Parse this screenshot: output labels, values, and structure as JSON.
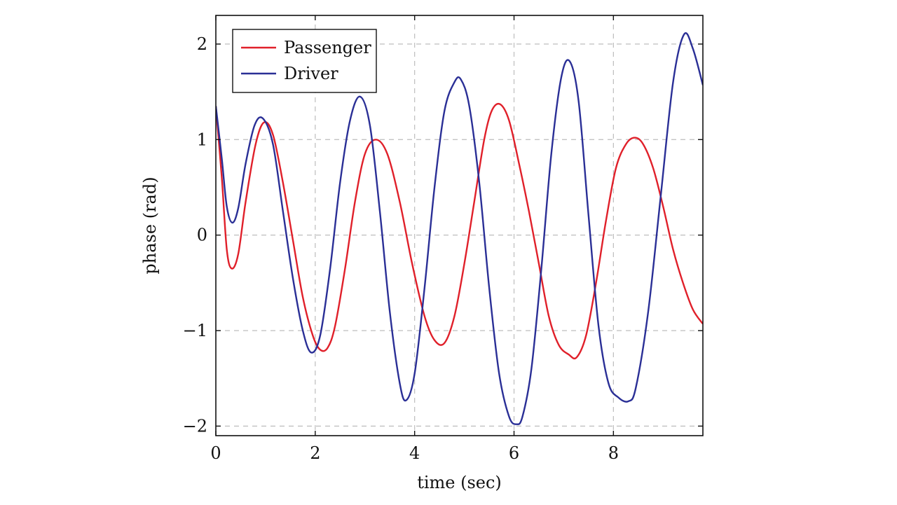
{
  "chart_data": {
    "type": "line",
    "xlabel": "time (sec)",
    "ylabel": "phase (rad)",
    "xlim": [
      0,
      9.8
    ],
    "ylim": [
      -2.1,
      2.3
    ],
    "xticks": [
      0,
      2,
      4,
      6,
      8
    ],
    "yticks": [
      -2,
      -1,
      0,
      1,
      2
    ],
    "xtick_labels": [
      "0",
      "2",
      "4",
      "6",
      "8"
    ],
    "ytick_labels": [
      "−2",
      "−1",
      "0",
      "1",
      "2"
    ],
    "grid": true,
    "legend_position": "top-left",
    "series": [
      {
        "name": "Passenger",
        "color": "#e0202a",
        "x": [
          0,
          0.12,
          0.22,
          0.32,
          0.45,
          0.6,
          0.8,
          0.97,
          1.15,
          1.35,
          1.55,
          1.75,
          1.95,
          2.1,
          2.25,
          2.4,
          2.6,
          2.8,
          3.0,
          3.22,
          3.45,
          3.7,
          3.95,
          4.2,
          4.4,
          4.6,
          4.8,
          5.0,
          5.2,
          5.4,
          5.55,
          5.72,
          5.9,
          6.1,
          6.3,
          6.5,
          6.7,
          6.9,
          7.1,
          7.26,
          7.45,
          7.65,
          7.85,
          8.05,
          8.25,
          8.43,
          8.6,
          8.8,
          9.0,
          9.2,
          9.4,
          9.6,
          9.8
        ],
        "y": [
          1.35,
          0.6,
          -0.15,
          -0.35,
          -0.2,
          0.35,
          0.95,
          1.18,
          1.05,
          0.55,
          -0.05,
          -0.65,
          -1.05,
          -1.2,
          -1.18,
          -0.95,
          -0.35,
          0.35,
          0.85,
          1.0,
          0.85,
          0.35,
          -0.3,
          -0.85,
          -1.1,
          -1.13,
          -0.85,
          -0.3,
          0.35,
          1.0,
          1.3,
          1.37,
          1.2,
          0.75,
          0.25,
          -0.3,
          -0.85,
          -1.15,
          -1.25,
          -1.28,
          -1.05,
          -0.5,
          0.15,
          0.7,
          0.95,
          1.02,
          0.95,
          0.7,
          0.3,
          -0.15,
          -0.5,
          -0.78,
          -0.93
        ]
      },
      {
        "name": "Driver",
        "color": "#2a2f96",
        "x": [
          0,
          0.12,
          0.22,
          0.33,
          0.45,
          0.6,
          0.78,
          0.95,
          1.15,
          1.35,
          1.55,
          1.75,
          1.92,
          2.1,
          2.3,
          2.5,
          2.7,
          2.9,
          3.1,
          3.3,
          3.5,
          3.7,
          3.83,
          4.0,
          4.2,
          4.4,
          4.6,
          4.8,
          4.93,
          5.1,
          5.3,
          5.5,
          5.7,
          5.9,
          6.05,
          6.17,
          6.35,
          6.55,
          6.75,
          6.95,
          7.12,
          7.3,
          7.5,
          7.7,
          7.9,
          8.1,
          8.3,
          8.45,
          8.7,
          8.95,
          9.2,
          9.42,
          9.6,
          9.8
        ],
        "y": [
          1.35,
          0.8,
          0.3,
          0.13,
          0.28,
          0.75,
          1.15,
          1.22,
          0.95,
          0.25,
          -0.45,
          -1.0,
          -1.23,
          -1.05,
          -0.35,
          0.55,
          1.2,
          1.45,
          1.15,
          0.25,
          -0.8,
          -1.55,
          -1.73,
          -1.45,
          -0.55,
          0.5,
          1.3,
          1.6,
          1.63,
          1.35,
          0.55,
          -0.55,
          -1.45,
          -1.9,
          -1.98,
          -1.9,
          -1.4,
          -0.35,
          0.85,
          1.65,
          1.82,
          1.4,
          0.2,
          -0.95,
          -1.55,
          -1.7,
          -1.74,
          -1.6,
          -0.8,
          0.4,
          1.6,
          2.1,
          1.95,
          1.57
        ]
      }
    ]
  }
}
